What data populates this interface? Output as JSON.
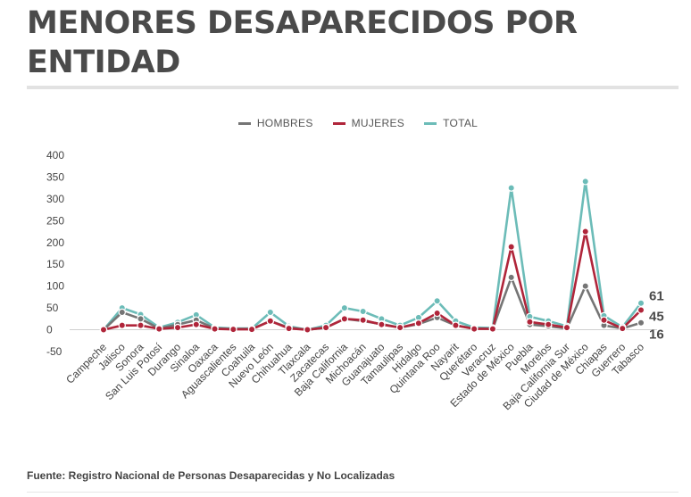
{
  "header": {
    "title": "MENORES DESAPARECIDOS POR ENTIDAD"
  },
  "footer": {
    "source": "Fuente: Registro Nacional de Personas Desaparecidas y No Localizadas"
  },
  "chart_data": {
    "type": "line",
    "title": "MENORES DESAPARECIDOS POR ENTIDAD",
    "xlabel": "",
    "ylabel": "",
    "ylim": [
      -50,
      400
    ],
    "yticks": [
      -50,
      0,
      50,
      100,
      150,
      200,
      250,
      300,
      350,
      400
    ],
    "grid": false,
    "legend_position": "top-center",
    "categories": [
      "Campeche",
      "Jalisco",
      "Sonora",
      "San Luis Potosí",
      "Durango",
      "Sinaloa",
      "Oaxaca",
      "Aguascalientes",
      "Coahuila",
      "Nuevo León",
      "Chihuahua",
      "Tlaxcala",
      "Zacatecas",
      "Baja California",
      "Michoacán",
      "Guanajuato",
      "Tamaulipas",
      "Hidalgo",
      "Quintana Roo",
      "Nayarit",
      "Querétaro",
      "Veracruz",
      "Estado de México",
      "Puebla",
      "Morelos",
      "Baja California Sur",
      "Ciudad de México",
      "Chiapas",
      "Guerrero",
      "Tabasco"
    ],
    "series": [
      {
        "name": "HOMBRES",
        "color": "#757575",
        "values": [
          0,
          40,
          25,
          3,
          12,
          22,
          3,
          2,
          2,
          20,
          5,
          0,
          5,
          25,
          20,
          13,
          5,
          13,
          28,
          10,
          3,
          2,
          120,
          12,
          8,
          3,
          100,
          10,
          3,
          16
        ]
      },
      {
        "name": "MUJERES",
        "color": "#b0253a",
        "values": [
          0,
          10,
          10,
          2,
          5,
          12,
          2,
          1,
          1,
          20,
          3,
          0,
          5,
          25,
          22,
          12,
          5,
          15,
          38,
          10,
          2,
          2,
          190,
          18,
          12,
          5,
          225,
          22,
          3,
          45
        ]
      },
      {
        "name": "TOTAL",
        "color": "#6cbcb8",
        "values": [
          0,
          50,
          35,
          5,
          17,
          34,
          5,
          3,
          3,
          40,
          8,
          0,
          10,
          50,
          42,
          25,
          10,
          28,
          66,
          20,
          5,
          4,
          325,
          30,
          20,
          8,
          340,
          32,
          6,
          61
        ]
      }
    ],
    "end_labels": [
      {
        "series": "TOTAL",
        "text": "61"
      },
      {
        "series": "MUJERES",
        "text": "45"
      },
      {
        "series": "HOMBRES",
        "text": "16"
      }
    ]
  }
}
